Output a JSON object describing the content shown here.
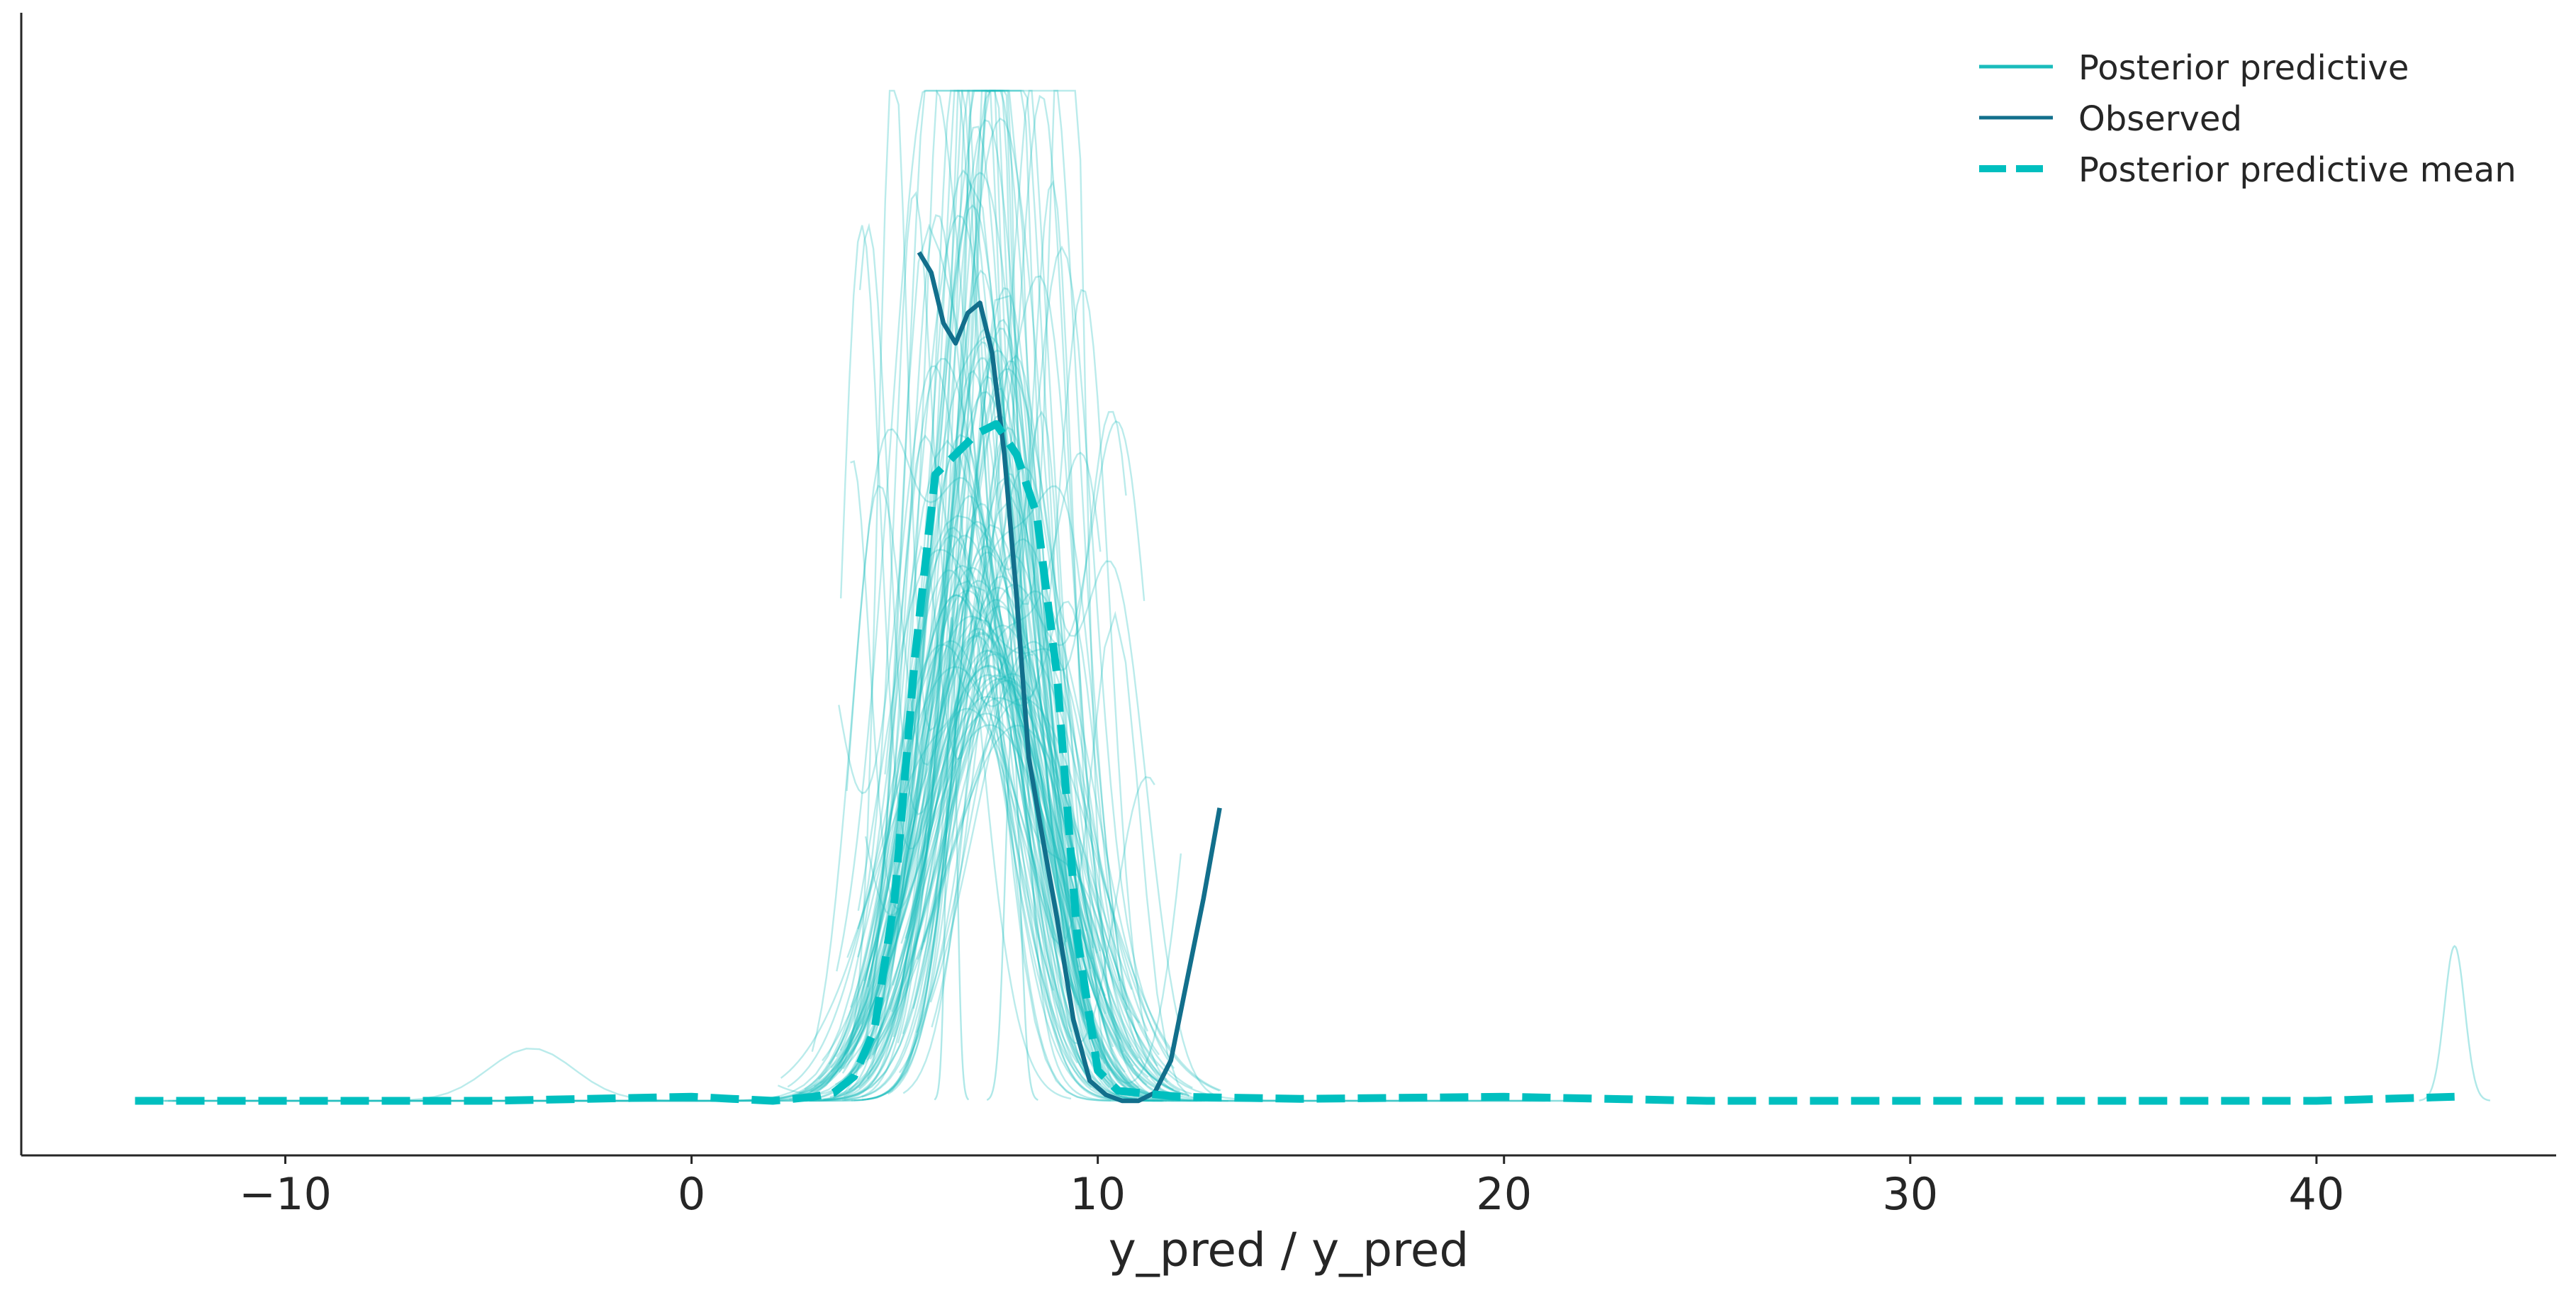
{
  "chart_data": {
    "type": "line",
    "title": "",
    "xlabel": "y_pred / y_pred",
    "ylabel": "",
    "xlim": [
      -16.5,
      45.9
    ],
    "x_ticks": [
      -10,
      0,
      10,
      20,
      30,
      40
    ],
    "x_tick_labels": [
      "−10",
      "0",
      "10",
      "20",
      "30",
      "40"
    ],
    "y_ticks_shown": false,
    "grid": false,
    "legend_position": "top-right",
    "legend": [
      {
        "label": "Posterior predictive",
        "color": "#1abcbc",
        "style": "solid"
      },
      {
        "label": "Observed",
        "color": "#126f8c",
        "style": "solid"
      },
      {
        "label": "Posterior predictive mean",
        "color": "#00bfbf",
        "style": "dashed"
      }
    ],
    "colors": {
      "posterior_predictive": "#1abcbc",
      "observed": "#126f8c",
      "mean": "#00bfbf",
      "axis": "#262626"
    },
    "posterior_predictive_samples": 120,
    "series": [
      {
        "name": "Observed",
        "x": [
          5.6,
          5.9,
          6.2,
          6.5,
          6.8,
          7.1,
          7.4,
          7.7,
          8.0,
          8.3,
          8.6,
          9.0,
          9.4,
          9.8,
          10.2,
          10.6,
          11.0,
          11.4,
          11.8,
          12.2,
          12.6,
          13.0
        ],
        "y": [
          0.42,
          0.41,
          0.385,
          0.375,
          0.39,
          0.395,
          0.37,
          0.32,
          0.25,
          0.17,
          0.135,
          0.09,
          0.04,
          0.01,
          0.003,
          0.0,
          0.0,
          0.004,
          0.02,
          0.06,
          0.1,
          0.145
        ]
      },
      {
        "name": "Posterior predictive mean",
        "x": [
          -13.7,
          -5,
          0,
          1,
          2,
          3,
          3.5,
          4,
          4.5,
          5,
          5.5,
          6,
          6.5,
          7,
          7.5,
          8,
          8.5,
          9,
          9.5,
          10,
          10.5,
          12,
          15,
          20,
          25,
          30,
          35,
          40,
          43.4
        ],
        "y": [
          0.0,
          0.0,
          0.002,
          0.001,
          0.0,
          0.002,
          0.004,
          0.012,
          0.035,
          0.1,
          0.22,
          0.31,
          0.32,
          0.33,
          0.335,
          0.32,
          0.29,
          0.21,
          0.08,
          0.015,
          0.005,
          0.002,
          0.001,
          0.002,
          0.0,
          0.0,
          0.0,
          0.0,
          0.002
        ]
      }
    ]
  }
}
